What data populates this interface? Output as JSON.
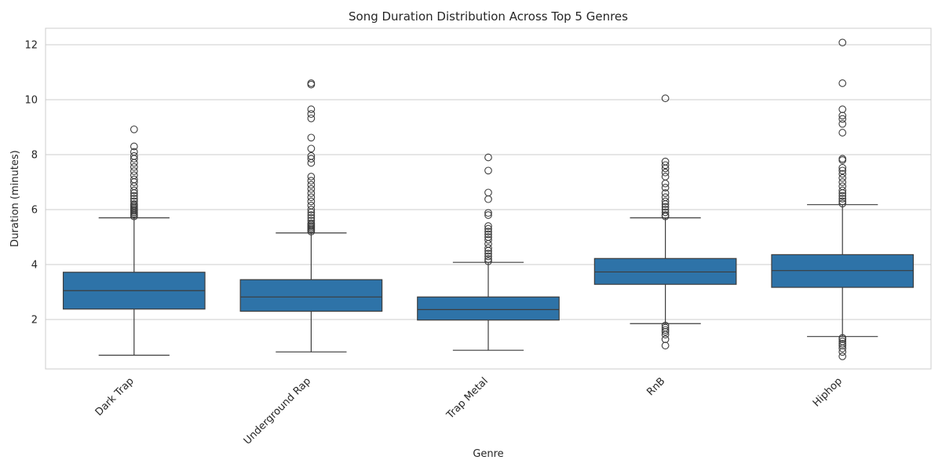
{
  "chart_data": {
    "type": "box",
    "title": "Song Duration Distribution Across Top 5 Genres",
    "xlabel": "Genre",
    "ylabel": "Duration (minutes)",
    "ylim": [
      0.2,
      12.6
    ],
    "yticks": [
      2,
      4,
      6,
      8,
      10,
      12
    ],
    "grid": true,
    "box_color": "#2e73a8",
    "line_color": "#3d3d3d",
    "categories": [
      "Dark Trap",
      "Underground Rap",
      "Trap Metal",
      "RnB",
      "Hiphop"
    ],
    "boxes": [
      {
        "category": "Dark Trap",
        "whisker_low": 0.7,
        "q1": 2.38,
        "median": 3.05,
        "q3": 3.72,
        "whisker_high": 5.7,
        "outliers": [
          5.75,
          5.8,
          5.85,
          5.9,
          5.95,
          6.0,
          6.05,
          6.1,
          6.15,
          6.2,
          6.3,
          6.4,
          6.5,
          6.6,
          6.7,
          6.85,
          7.0,
          7.1,
          7.25,
          7.4,
          7.55,
          7.7,
          7.85,
          7.95,
          8.1,
          8.3,
          8.92
        ]
      },
      {
        "category": "Underground Rap",
        "whisker_low": 0.82,
        "q1": 2.3,
        "median": 2.82,
        "q3": 3.45,
        "whisker_high": 5.15,
        "outliers": [
          5.2,
          5.25,
          5.3,
          5.35,
          5.4,
          5.45,
          5.5,
          5.6,
          5.7,
          5.8,
          5.9,
          6.0,
          6.15,
          6.3,
          6.45,
          6.6,
          6.75,
          6.9,
          7.05,
          7.2,
          7.7,
          7.85,
          7.95,
          8.22,
          8.62,
          9.32,
          9.48,
          9.65,
          10.55,
          10.6
        ]
      },
      {
        "category": "Trap Metal",
        "whisker_low": 0.88,
        "q1": 1.98,
        "median": 2.36,
        "q3": 2.82,
        "whisker_high": 4.08,
        "outliers": [
          4.12,
          4.2,
          4.3,
          4.4,
          4.5,
          4.6,
          4.75,
          4.9,
          5.0,
          5.1,
          5.2,
          5.3,
          5.4,
          5.8,
          5.88,
          6.38,
          6.62,
          7.42,
          7.9
        ]
      },
      {
        "category": "RnB",
        "whisker_low": 1.85,
        "q1": 3.28,
        "median": 3.73,
        "q3": 4.22,
        "whisker_high": 5.7,
        "outliers": [
          1.05,
          1.28,
          1.45,
          1.55,
          1.62,
          1.7,
          1.78,
          5.75,
          5.8,
          5.9,
          6.0,
          6.1,
          6.2,
          6.3,
          6.45,
          6.6,
          6.8,
          6.95,
          7.2,
          7.35,
          7.5,
          7.62,
          7.75,
          10.05
        ]
      },
      {
        "category": "Hiphop",
        "whisker_low": 1.38,
        "q1": 3.17,
        "median": 3.78,
        "q3": 4.36,
        "whisker_high": 6.18,
        "outliers": [
          0.66,
          0.82,
          0.95,
          1.05,
          1.12,
          1.2,
          1.28,
          1.33,
          6.22,
          6.3,
          6.4,
          6.5,
          6.6,
          6.7,
          6.85,
          7.0,
          7.15,
          7.3,
          7.42,
          7.52,
          7.8,
          7.85,
          8.8,
          9.12,
          9.3,
          9.42,
          9.65,
          10.6,
          12.08
        ]
      }
    ]
  }
}
